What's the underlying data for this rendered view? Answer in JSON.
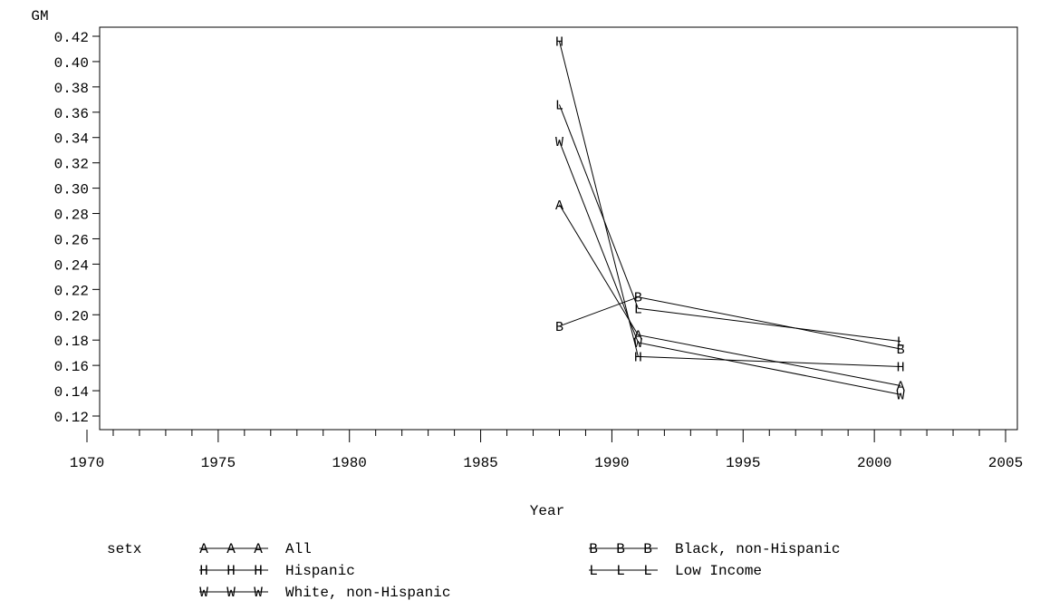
{
  "chart_data": {
    "type": "line",
    "ylabel": "GM",
    "xlabel": "Year",
    "xlim": [
      1970,
      2005
    ],
    "ylim": [
      0.12,
      0.42
    ],
    "x_ticks": [
      1970,
      1975,
      1980,
      1985,
      1990,
      1995,
      2000,
      2005
    ],
    "x_tick_labels": [
      "1970",
      "1975",
      "1980",
      "1985",
      "1990",
      "1995",
      "2000",
      "2005"
    ],
    "y_ticks": [
      0.12,
      0.14,
      0.16,
      0.18,
      0.2,
      0.22,
      0.24,
      0.26,
      0.28,
      0.3,
      0.32,
      0.34,
      0.36,
      0.38,
      0.4,
      0.42
    ],
    "y_tick_labels": [
      "0.12",
      "0.14",
      "0.16",
      "0.18",
      "0.20",
      "0.22",
      "0.24",
      "0.26",
      "0.28",
      "0.30",
      "0.32",
      "0.34",
      "0.36",
      "0.38",
      "0.40",
      "0.42"
    ],
    "legend_title": "setx",
    "legend_placement": "bottom",
    "series": [
      {
        "name": "All",
        "symbol": "A",
        "points": [
          [
            1988,
            0.287
          ],
          [
            1991,
            0.184
          ],
          [
            2001,
            0.144
          ]
        ]
      },
      {
        "name": "Black, non-Hispanic",
        "symbol": "B",
        "points": [
          [
            1988,
            0.191
          ],
          [
            1991,
            0.214
          ],
          [
            2001,
            0.173
          ]
        ]
      },
      {
        "name": "Hispanic",
        "symbol": "H",
        "points": [
          [
            1988,
            0.416
          ],
          [
            1991,
            0.167
          ],
          [
            2001,
            0.159
          ]
        ]
      },
      {
        "name": "Low Income",
        "symbol": "L",
        "points": [
          [
            1988,
            0.366
          ],
          [
            1991,
            0.205
          ],
          [
            2001,
            0.179
          ]
        ]
      },
      {
        "name": "White, non-Hispanic",
        "symbol": "W",
        "points": [
          [
            1988,
            0.337
          ],
          [
            1991,
            0.178
          ],
          [
            2001,
            0.137
          ]
        ]
      }
    ]
  }
}
